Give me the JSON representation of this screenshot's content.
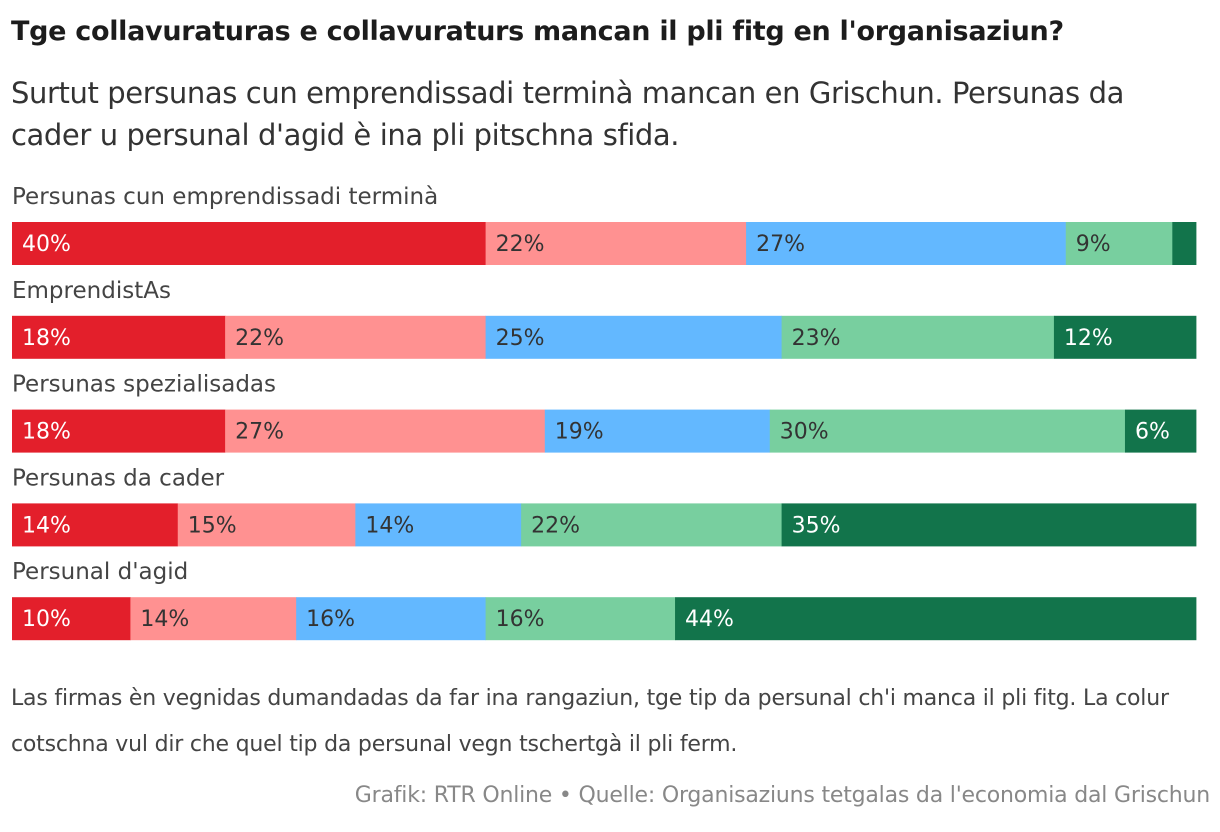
{
  "title": "Tge collavuraturas e collavuraturs mancan il pli fitg en l'organisaziun?",
  "subtitle": "Surtut persunas cun emprendissadi terminà mancan en Grischun. Persunas da cader u persunal d'agid è ina pli pitschna sfida.",
  "note": "Las firmas èn vegnidas dumandadas da far ina rangaziun, tge tip da persunal ch'i manca il pli fitg. La colur cotschna vul dir che quel tip da persunal vegn tschertgà il pli ferm.",
  "source": "Grafik: RTR Online • Quelle: Organisaziuns tetgalas da l'economia dal Grischun",
  "chart_data": {
    "type": "bar",
    "orientation": "horizontal",
    "stacked": true,
    "normalized_percent": true,
    "categories": [
      "Persunas cun emprendissadi terminà",
      "EmprendistAs",
      "Persunas spezialisadas",
      "Persunas da cader",
      "Persunal d'agid"
    ],
    "series": [
      {
        "color": "#e31f2b",
        "text_color": "#ffffff",
        "values": [
          40,
          18,
          18,
          14,
          10
        ]
      },
      {
        "color": "#ff9191",
        "text_color": "#333333",
        "values": [
          22,
          22,
          27,
          15,
          14
        ]
      },
      {
        "color": "#63b8ff",
        "text_color": "#333333",
        "values": [
          27,
          25,
          19,
          14,
          16
        ]
      },
      {
        "color": "#78cf9f",
        "text_color": "#333333",
        "values": [
          9,
          23,
          30,
          22,
          16
        ]
      },
      {
        "color": "#12744b",
        "text_color": "#ffffff",
        "values": [
          2,
          12,
          6,
          35,
          44
        ]
      }
    ],
    "value_labels": [
      [
        "40%",
        "22%",
        "27%",
        "9%",
        ""
      ],
      [
        "18%",
        "22%",
        "25%",
        "23%",
        "12%"
      ],
      [
        "18%",
        "27%",
        "19%",
        "30%",
        "6%"
      ],
      [
        "14%",
        "15%",
        "14%",
        "22%",
        "35%"
      ],
      [
        "10%",
        "14%",
        "16%",
        "16%",
        "44%"
      ]
    ],
    "legend": "none",
    "grid": false
  }
}
